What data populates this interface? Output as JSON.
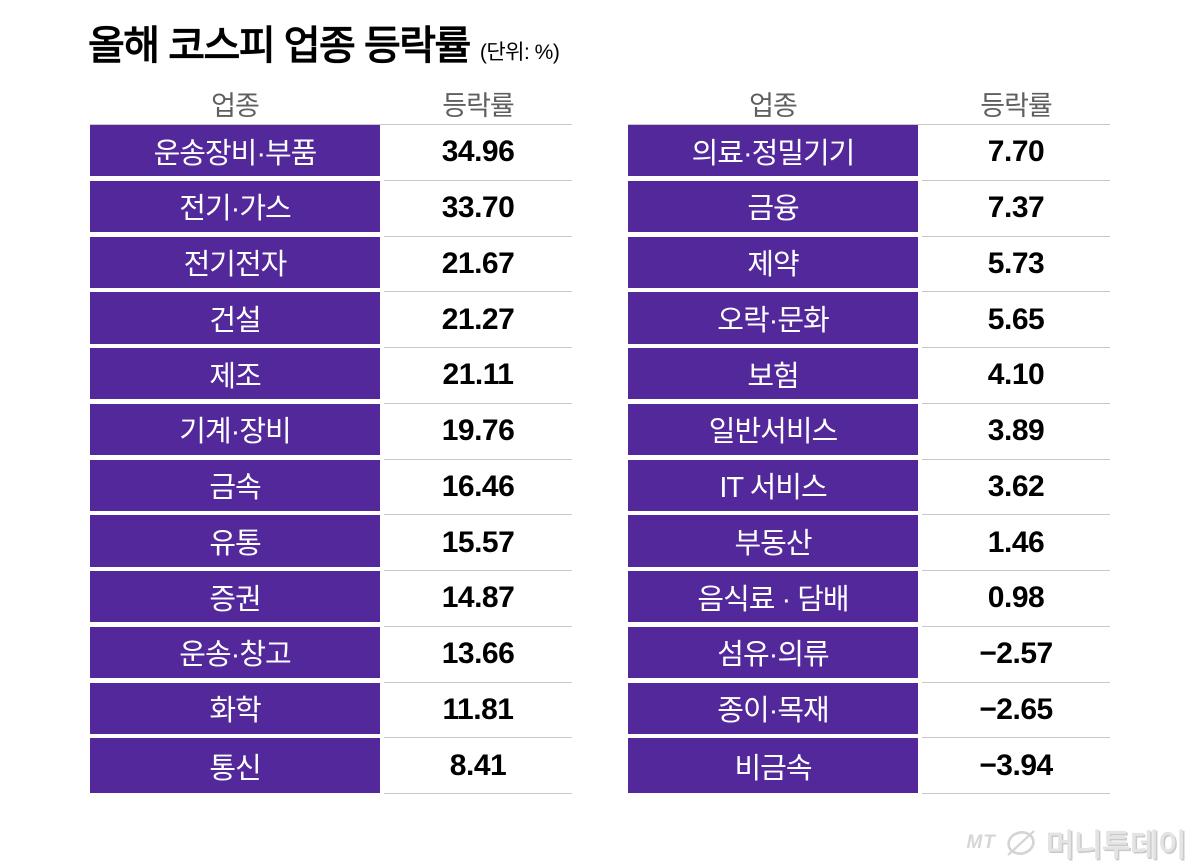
{
  "title": {
    "text": "올해 코스피 업종 등락률",
    "unit": "(단위: %)"
  },
  "column_headers": {
    "sector": "업종",
    "rate": "등락률"
  },
  "tables": [
    {
      "rows": [
        {
          "sector": "운송장비·부품",
          "rate": "34.96"
        },
        {
          "sector": "전기·가스",
          "rate": "33.70"
        },
        {
          "sector": "전기전자",
          "rate": "21.67"
        },
        {
          "sector": "건설",
          "rate": "21.27"
        },
        {
          "sector": "제조",
          "rate": "21.11"
        },
        {
          "sector": "기계·장비",
          "rate": "19.76"
        },
        {
          "sector": "금속",
          "rate": "16.46"
        },
        {
          "sector": "유통",
          "rate": "15.57"
        },
        {
          "sector": "증권",
          "rate": "14.87"
        },
        {
          "sector": "운송·창고",
          "rate": "13.66"
        },
        {
          "sector": "화학",
          "rate": "11.81"
        },
        {
          "sector": "통신",
          "rate": "8.41"
        }
      ]
    },
    {
      "rows": [
        {
          "sector": "의료·정밀기기",
          "rate": "7.70"
        },
        {
          "sector": "금융",
          "rate": "7.37"
        },
        {
          "sector": "제약",
          "rate": "5.73"
        },
        {
          "sector": "오락·문화",
          "rate": "5.65"
        },
        {
          "sector": "보험",
          "rate": "4.10"
        },
        {
          "sector": "일반서비스",
          "rate": "3.89"
        },
        {
          "sector": "IT 서비스",
          "rate": "3.62"
        },
        {
          "sector": "부동산",
          "rate": "1.46"
        },
        {
          "sector": "음식료 · 담배",
          "rate": "0.98"
        },
        {
          "sector": "섬유·의류",
          "rate": "−2.57"
        },
        {
          "sector": "종이·목재",
          "rate": "−2.65"
        },
        {
          "sector": "비금속",
          "rate": "−3.94"
        }
      ]
    }
  ],
  "logo": {
    "mt": "MT",
    "name": "머니투데이",
    "icon": "slashed-circle-icon"
  },
  "colors": {
    "purple": "#52289B",
    "row_line": "#c8c8c8",
    "header_text": "#5f5f5f"
  },
  "chart_data": {
    "type": "table",
    "title": "올해 코스피 업종 등락률",
    "unit": "%",
    "columns": [
      "업종",
      "등락률"
    ],
    "rows": [
      [
        "운송장비·부품",
        34.96
      ],
      [
        "전기·가스",
        33.7
      ],
      [
        "전기전자",
        21.67
      ],
      [
        "건설",
        21.27
      ],
      [
        "제조",
        21.11
      ],
      [
        "기계·장비",
        19.76
      ],
      [
        "금속",
        16.46
      ],
      [
        "유통",
        15.57
      ],
      [
        "증권",
        14.87
      ],
      [
        "운송·창고",
        13.66
      ],
      [
        "화학",
        11.81
      ],
      [
        "통신",
        8.41
      ],
      [
        "의료·정밀기기",
        7.7
      ],
      [
        "금융",
        7.37
      ],
      [
        "제약",
        5.73
      ],
      [
        "오락·문화",
        5.65
      ],
      [
        "보험",
        4.1
      ],
      [
        "일반서비스",
        3.89
      ],
      [
        "IT 서비스",
        3.62
      ],
      [
        "부동산",
        1.46
      ],
      [
        "음식료·담배",
        0.98
      ],
      [
        "섬유·의류",
        -2.57
      ],
      [
        "종이·목재",
        -2.65
      ],
      [
        "비금속",
        -3.94
      ]
    ]
  }
}
